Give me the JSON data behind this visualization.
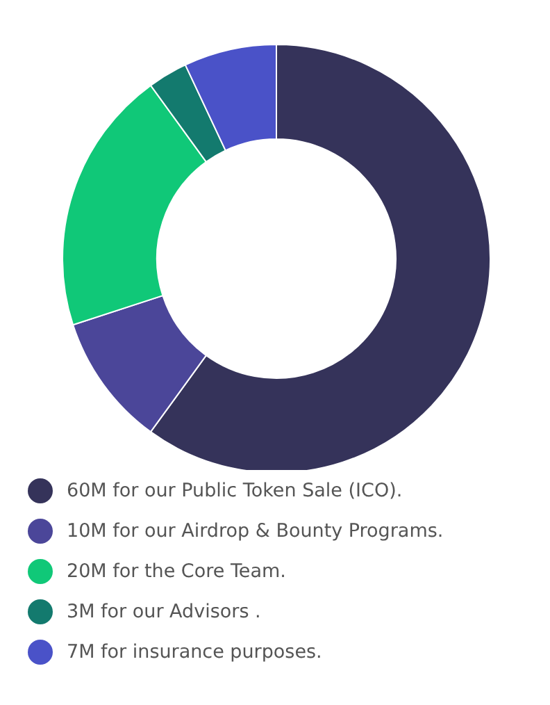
{
  "chart_data": {
    "type": "donut",
    "categories": [
      "60M for our Public Token Sale (ICO).",
      "10M for our Airdrop & Bounty Programs.",
      "20M for the Core Team.",
      "3M for our Advisors .",
      "7M for insurance purposes."
    ],
    "values": [
      60,
      10,
      20,
      3,
      7
    ],
    "colors": [
      "#35335a",
      "#4b4699",
      "#10c878",
      "#137a6e",
      "#4a52c8"
    ],
    "legend": "bottom left"
  }
}
